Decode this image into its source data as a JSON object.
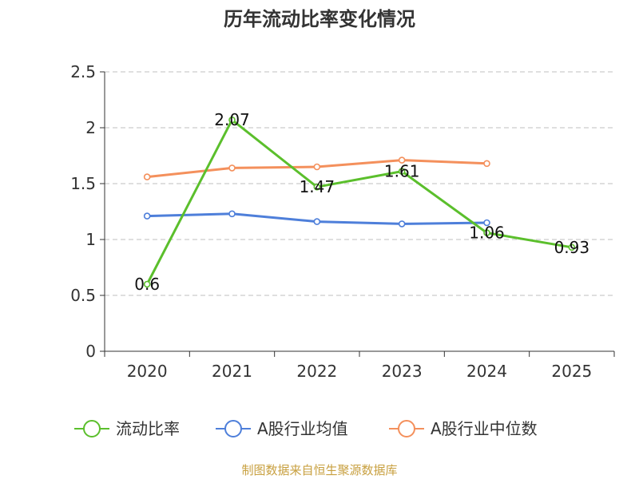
{
  "chart_data": {
    "type": "line",
    "title": "历年流动比率变化情况",
    "categories": [
      "2020",
      "2021",
      "2022",
      "2023",
      "2024",
      "2025"
    ],
    "ylim": [
      0,
      2.5
    ],
    "yticks": [
      "0",
      "0.5",
      "1",
      "1.5",
      "2",
      "2.5"
    ],
    "grid": true,
    "legend_position": "bottom",
    "series": [
      {
        "name": "流动比率",
        "color": "#5bbf2c",
        "values": [
          0.6,
          2.07,
          1.47,
          1.61,
          1.06,
          0.93
        ],
        "labels": [
          "0.6",
          "2.07",
          "1.47",
          "1.61",
          "1.06",
          "0.93"
        ]
      },
      {
        "name": "A股行业均值",
        "color": "#4e7fda",
        "values": [
          1.21,
          1.23,
          1.16,
          1.14,
          1.15,
          null
        ]
      },
      {
        "name": "A股行业中位数",
        "color": "#f4905c",
        "values": [
          1.56,
          1.64,
          1.65,
          1.71,
          1.68,
          null
        ]
      }
    ],
    "source": "制图数据来自恒生聚源数据库",
    "source_color": "#c8a040"
  }
}
